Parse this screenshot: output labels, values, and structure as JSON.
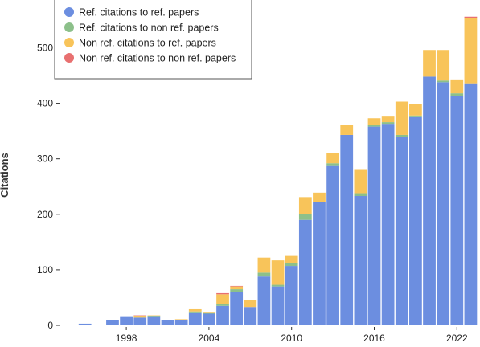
{
  "chart_data": {
    "type": "bar",
    "stacked": true,
    "title": "",
    "xlabel": "",
    "ylabel": "Citations",
    "ylim": [
      0,
      560
    ],
    "yticks": [
      0,
      100,
      200,
      300,
      400,
      500
    ],
    "xticks": [
      "1998",
      "2004",
      "2010",
      "2016",
      "2022"
    ],
    "grid": false,
    "legend_position": "top-left",
    "categories": [
      "1994",
      "1995",
      "1996",
      "1997",
      "1998",
      "1999",
      "2000",
      "2001",
      "2002",
      "2003",
      "2004",
      "2005",
      "2006",
      "2007",
      "2008",
      "2009",
      "2010",
      "2011",
      "2012",
      "2013",
      "2014",
      "2015",
      "2016",
      "2017",
      "2018",
      "2019",
      "2020",
      "2021",
      "2022",
      "2023"
    ],
    "series": [
      {
        "name": "Ref. citations to ref. papers",
        "color": "#6c8ee0",
        "values": [
          1,
          3,
          0,
          10,
          15,
          14,
          15,
          9,
          10,
          22,
          21,
          35,
          60,
          33,
          88,
          70,
          107,
          190,
          222,
          287,
          343,
          233,
          358,
          363,
          340,
          375,
          448,
          438,
          413,
          436
        ]
      },
      {
        "name": "Ref. citations to non ref. papers",
        "color": "#8cc08a",
        "values": [
          0,
          0,
          0,
          0,
          0,
          0,
          1,
          0,
          0,
          3,
          1,
          3,
          5,
          0,
          7,
          3,
          5,
          10,
          0,
          5,
          0,
          5,
          3,
          3,
          3,
          3,
          0,
          3,
          5,
          0
        ]
      },
      {
        "name": "Non ref. citations to ref. papers",
        "color": "#f8c45a",
        "values": [
          0,
          0,
          0,
          0,
          0,
          2,
          2,
          1,
          1,
          4,
          1,
          18,
          5,
          12,
          27,
          44,
          13,
          31,
          17,
          18,
          18,
          42,
          12,
          10,
          60,
          20,
          48,
          55,
          25,
          118
        ]
      },
      {
        "name": "Non ref. citations to non ref. papers",
        "color": "#e87070",
        "values": [
          0,
          0,
          0,
          0,
          0,
          2,
          0,
          0,
          0,
          0,
          0,
          2,
          1,
          0,
          0,
          0,
          0,
          0,
          0,
          0,
          0,
          0,
          0,
          0,
          0,
          0,
          0,
          0,
          0,
          2
        ]
      }
    ]
  }
}
